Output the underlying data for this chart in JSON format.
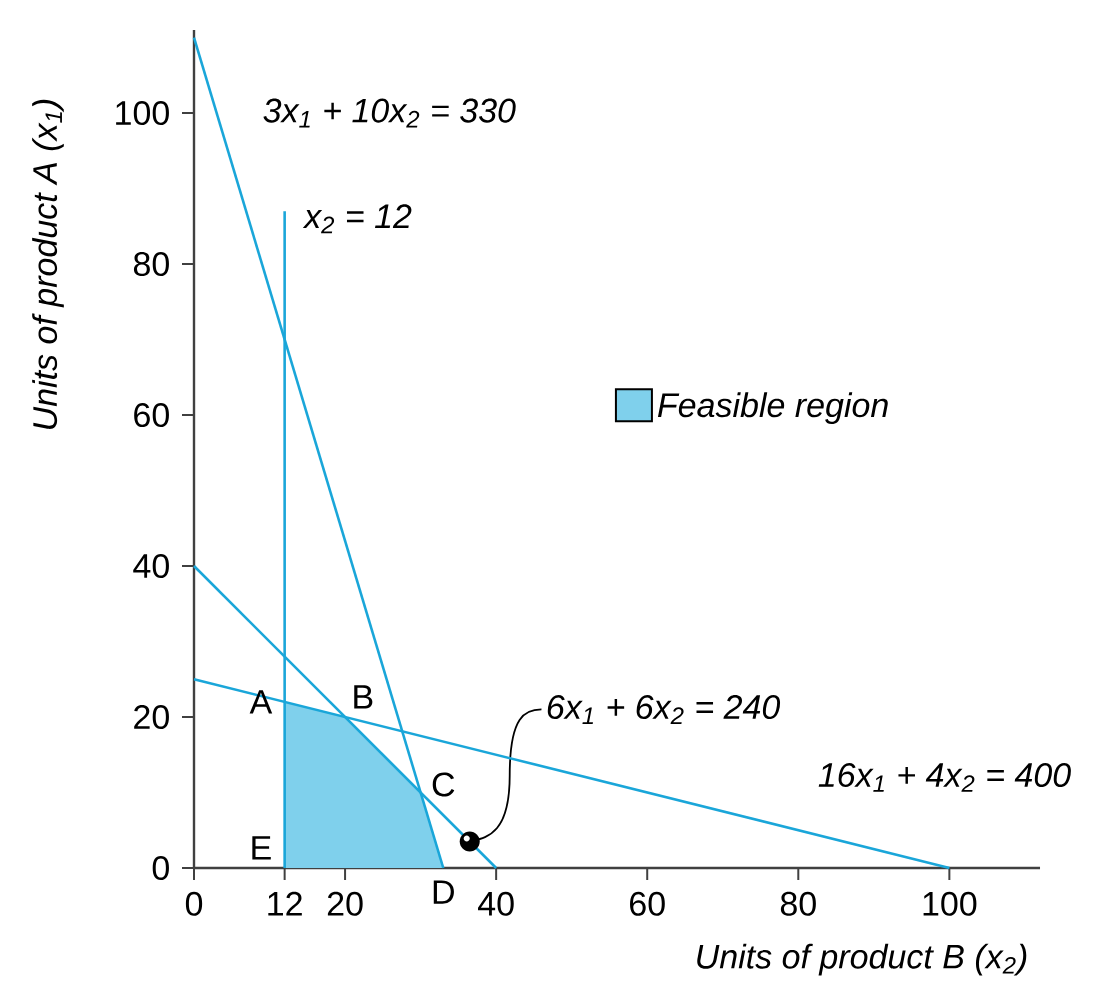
{
  "chart_data": {
    "type": "line",
    "xlabel": "Units of product B (x$_{2}$)",
    "ylabel": "Units of product A (x$_{1}$)",
    "xlim": [
      0,
      112
    ],
    "ylim": [
      0,
      111
    ],
    "xticks": [
      0,
      12,
      20,
      40,
      60,
      80,
      100
    ],
    "yticks": [
      0,
      20,
      40,
      60,
      80,
      100
    ],
    "grid": false,
    "legend": "right",
    "marker": "none",
    "line_style": "solid",
    "series": [
      {
        "name": "3x$_{1}$ + 10x$_{2}$ = 330",
        "color": "#1aa6d9",
        "x": [
          0,
          33
        ],
        "values": [
          110,
          0
        ]
      },
      {
        "name": "x$_{2}$ = 12",
        "color": "#1aa6d9",
        "x": [
          12,
          12
        ],
        "values": [
          0,
          87
        ]
      },
      {
        "name": "6x$_{1}$ + 6x$_{2}$ = 240",
        "color": "#1aa6d9",
        "x": [
          0,
          40
        ],
        "values": [
          40,
          0
        ]
      },
      {
        "name": "16x$_{1}$ + 4x$_{2}$ = 400",
        "color": "#1aa6d9",
        "x": [
          0,
          100
        ],
        "values": [
          25,
          0
        ]
      },
      {
        "name": "Feasible region",
        "type": "area",
        "color": "#7fd0ec",
        "x": [
          12,
          12,
          20,
          30,
          33
        ],
        "values": [
          0,
          22,
          20,
          10,
          0
        ]
      }
    ],
    "annotations": [
      {
        "text": "A",
        "x": 12,
        "y": 22
      },
      {
        "text": "B",
        "x": 20,
        "y": 20
      },
      {
        "text": "C",
        "x": 30,
        "y": 10
      },
      {
        "text": "D",
        "x": 33,
        "y": 0
      },
      {
        "text": "E",
        "x": 12,
        "y": 0
      }
    ]
  }
}
